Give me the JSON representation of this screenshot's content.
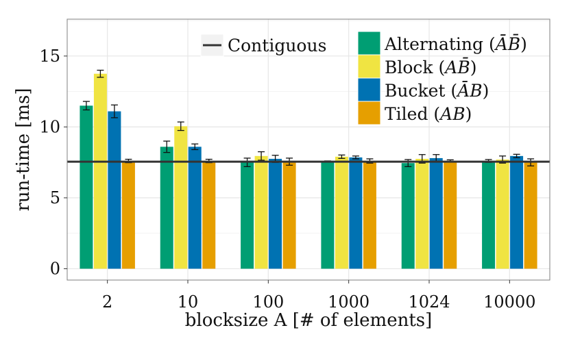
{
  "chart_data": {
    "type": "bar",
    "title": "",
    "xlabel": "blocksize A [# of elements]",
    "ylabel": "run-time [ms]",
    "ylim": [
      -0.8,
      17.6
    ],
    "yticks": [
      0,
      5,
      10,
      15
    ],
    "categories": [
      "2",
      "10",
      "100",
      "1000",
      "1024",
      "10000"
    ],
    "series": [
      {
        "name": "Alternating (ĀB̄)",
        "legend_label": "Alternating",
        "legend_math": "ĀB̄",
        "color": "#009E73",
        "values": [
          11.5,
          8.6,
          7.5,
          7.6,
          7.45,
          7.6
        ],
        "errors": [
          0.3,
          0.4,
          0.3,
          0.0,
          0.25,
          0.1
        ]
      },
      {
        "name": "Block (AB̄)",
        "legend_label": "Block",
        "legend_math": "AB̄",
        "color": "#F0E442",
        "values": [
          13.75,
          10.05,
          7.95,
          7.9,
          7.75,
          7.7
        ],
        "errors": [
          0.25,
          0.3,
          0.3,
          0.12,
          0.3,
          0.25
        ]
      },
      {
        "name": "Bucket (ĀB)",
        "legend_label": "Bucket",
        "legend_math": "ĀB",
        "color": "#0072B2",
        "values": [
          11.1,
          8.6,
          7.75,
          7.85,
          7.8,
          7.95
        ],
        "errors": [
          0.45,
          0.2,
          0.25,
          0.1,
          0.25,
          0.12
        ]
      },
      {
        "name": "Tiled (AB)",
        "legend_label": "Tiled",
        "legend_math": "AB",
        "color": "#E69F00",
        "values": [
          7.6,
          7.6,
          7.55,
          7.6,
          7.6,
          7.5
        ],
        "errors": [
          0.12,
          0.12,
          0.25,
          0.15,
          0.08,
          0.25
        ]
      }
    ],
    "reference_line": {
      "name": "Contiguous",
      "value": 7.55,
      "color": "#333333"
    },
    "grid": true,
    "legend": "top-right"
  }
}
